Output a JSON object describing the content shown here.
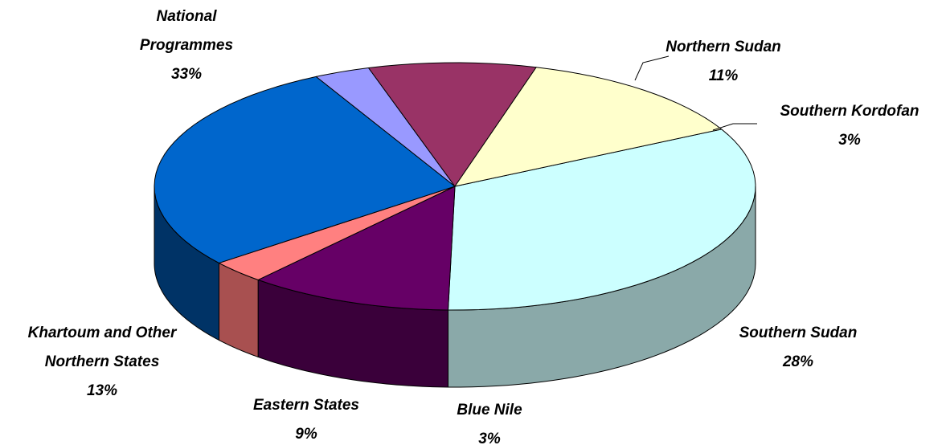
{
  "chart_data": {
    "type": "pie",
    "style": "3d",
    "slices": [
      {
        "label": [
          "National",
          "Programmes"
        ],
        "pct": "33%",
        "value": 33,
        "color": "#CCFFFF",
        "side": "#8AA9A9"
      },
      {
        "label": [
          "Northern Sudan"
        ],
        "pct": "11%",
        "value": 11,
        "color": "#660066",
        "side": "#3A003A"
      },
      {
        "label": [
          "Southern Kordofan"
        ],
        "pct": "3%",
        "value": 3,
        "color": "#FF8080",
        "side": "#A85050"
      },
      {
        "label": [
          "Southern Sudan"
        ],
        "pct": "28%",
        "value": 28,
        "color": "#0066CC",
        "side": "#003366"
      },
      {
        "label": [
          "Blue Nile"
        ],
        "pct": "3%",
        "value": 3,
        "color": "#9999FF",
        "side": "#4D4D80"
      },
      {
        "label": [
          "Eastern States"
        ],
        "pct": "9%",
        "value": 9,
        "color": "#993366",
        "side": "#4D1A33"
      },
      {
        "label": [
          "Khartoum and Other",
          "Northern States"
        ],
        "pct": "13%",
        "value": 13,
        "color": "#FFFFCC",
        "side": "#808066"
      }
    ]
  }
}
